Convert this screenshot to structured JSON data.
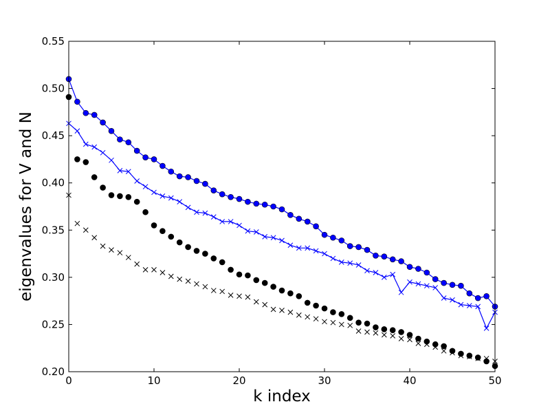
{
  "chart_data": {
    "type": "line",
    "xlabel": "k index",
    "ylabel": "eigenvalues for V and N",
    "xlim": [
      0,
      50
    ],
    "ylim": [
      0.2,
      0.55
    ],
    "xticks": [
      0,
      10,
      20,
      30,
      40,
      50
    ],
    "xtick_labels": [
      "0",
      "10",
      "20",
      "30",
      "40",
      "50"
    ],
    "yticks": [
      0.2,
      0.25,
      0.3,
      0.35,
      0.4,
      0.45,
      0.5,
      0.55
    ],
    "ytick_labels": [
      "0.20",
      "0.25",
      "0.30",
      "0.35",
      "0.40",
      "0.45",
      "0.50",
      "0.55"
    ],
    "grid": false,
    "legend": "none",
    "x": [
      0,
      1,
      2,
      3,
      4,
      5,
      6,
      7,
      8,
      9,
      10,
      11,
      12,
      13,
      14,
      15,
      16,
      17,
      18,
      19,
      20,
      21,
      22,
      23,
      24,
      25,
      26,
      27,
      28,
      29,
      30,
      31,
      32,
      33,
      34,
      35,
      36,
      37,
      38,
      39,
      40,
      41,
      42,
      43,
      44,
      45,
      46,
      47,
      48,
      49,
      50
    ],
    "series": [
      {
        "color": "#0000ff",
        "marker": "circle",
        "line": true,
        "values": [
          0.51,
          0.486,
          0.474,
          0.472,
          0.464,
          0.455,
          0.446,
          0.443,
          0.434,
          0.427,
          0.425,
          0.418,
          0.412,
          0.407,
          0.406,
          0.402,
          0.399,
          0.392,
          0.388,
          0.385,
          0.383,
          0.38,
          0.378,
          0.377,
          0.375,
          0.372,
          0.366,
          0.362,
          0.359,
          0.354,
          0.345,
          0.342,
          0.339,
          0.333,
          0.332,
          0.329,
          0.323,
          0.322,
          0.319,
          0.317,
          0.311,
          0.309,
          0.305,
          0.298,
          0.294,
          0.292,
          0.291,
          0.283,
          0.278,
          0.28,
          0.269
        ]
      },
      {
        "color": "#0000ff",
        "marker": "x",
        "line": true,
        "values": [
          0.463,
          0.455,
          0.441,
          0.438,
          0.432,
          0.424,
          0.413,
          0.412,
          0.402,
          0.396,
          0.39,
          0.386,
          0.384,
          0.38,
          0.374,
          0.369,
          0.368,
          0.364,
          0.359,
          0.359,
          0.355,
          0.349,
          0.348,
          0.343,
          0.342,
          0.339,
          0.334,
          0.331,
          0.331,
          0.328,
          0.325,
          0.32,
          0.316,
          0.315,
          0.313,
          0.307,
          0.305,
          0.3,
          0.303,
          0.284,
          0.295,
          0.293,
          0.291,
          0.289,
          0.278,
          0.276,
          0.271,
          0.27,
          0.269,
          0.246,
          0.263
        ]
      },
      {
        "color": "#000000",
        "marker": "circle",
        "line": false,
        "values": [
          0.491,
          0.425,
          0.422,
          0.406,
          0.395,
          0.387,
          0.386,
          0.385,
          0.38,
          0.369,
          0.355,
          0.349,
          0.343,
          0.337,
          0.332,
          0.328,
          0.325,
          0.32,
          0.316,
          0.308,
          0.303,
          0.302,
          0.297,
          0.294,
          0.29,
          0.286,
          0.283,
          0.28,
          0.273,
          0.27,
          0.267,
          0.263,
          0.261,
          0.257,
          0.252,
          0.251,
          0.247,
          0.245,
          0.244,
          0.242,
          0.239,
          0.235,
          0.232,
          0.229,
          0.227,
          0.222,
          0.219,
          0.217,
          0.215,
          0.211,
          0.206
        ]
      },
      {
        "color": "#000000",
        "marker": "x",
        "line": false,
        "values": [
          0.387,
          0.357,
          0.35,
          0.342,
          0.333,
          0.329,
          0.326,
          0.321,
          0.314,
          0.308,
          0.308,
          0.305,
          0.301,
          0.298,
          0.296,
          0.293,
          0.29,
          0.286,
          0.285,
          0.281,
          0.28,
          0.279,
          0.274,
          0.271,
          0.266,
          0.265,
          0.263,
          0.26,
          0.258,
          0.256,
          0.253,
          0.252,
          0.25,
          0.249,
          0.243,
          0.242,
          0.241,
          0.239,
          0.238,
          0.235,
          0.234,
          0.23,
          0.229,
          0.226,
          0.222,
          0.22,
          0.217,
          0.216,
          0.214,
          0.214,
          0.211
        ]
      }
    ]
  }
}
